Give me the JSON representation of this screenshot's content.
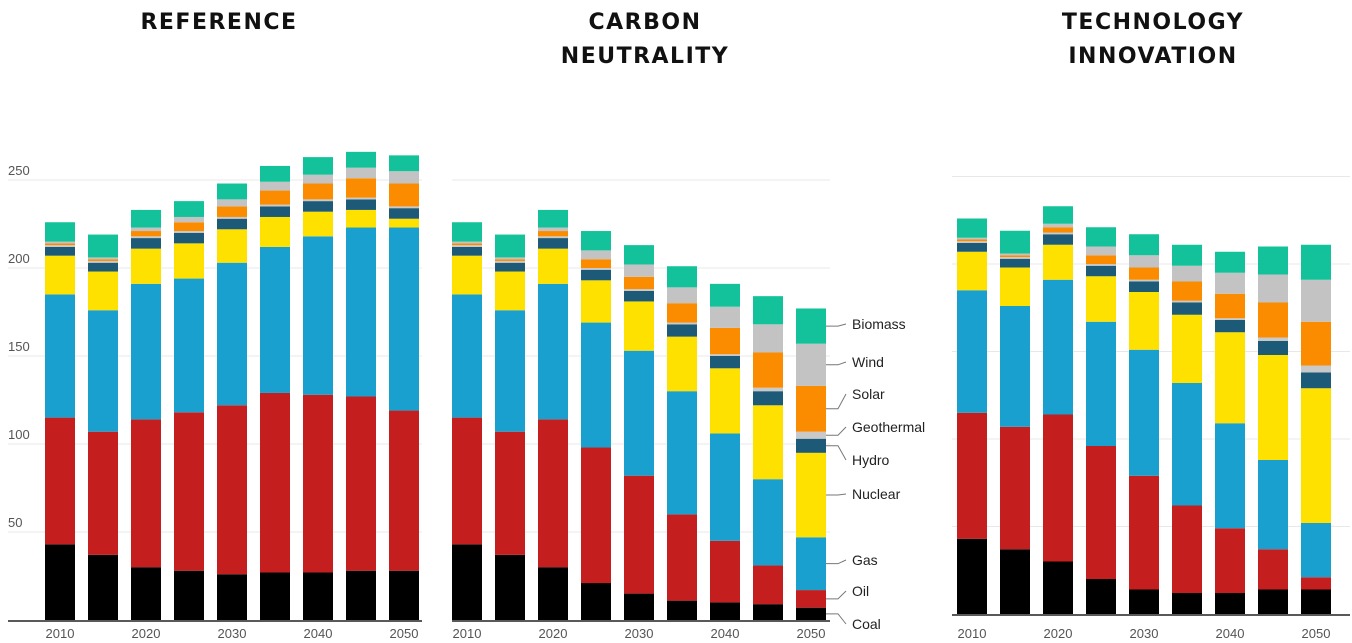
{
  "colors": {
    "Coal": "#000000",
    "Oil": "#c41e1e",
    "Gas": "#1aa0cf",
    "Nuclear": "#ffe100",
    "Hydro": "#1c5a78",
    "Geothermal": "#c9c9c9",
    "Solar": "#fb8c00",
    "Wind": "#c3c3c3",
    "Biomass": "#13c29a"
  },
  "chart_data": [
    {
      "type": "bar",
      "stacked": true,
      "title": "REFERENCE",
      "categories": [
        "2010",
        "2015",
        "2020",
        "2025",
        "2030",
        "2035",
        "2040",
        "2045",
        "2050"
      ],
      "x_tick_labels": [
        "2010",
        "2020",
        "2030",
        "2040",
        "2050"
      ],
      "y_tick_labels": [
        "50",
        "100",
        "150",
        "200",
        "250"
      ],
      "ylim": [
        0,
        260
      ],
      "grid": true,
      "series": [
        {
          "name": "Coal",
          "values": [
            43,
            37,
            30,
            28,
            26,
            27,
            27,
            28,
            28
          ]
        },
        {
          "name": "Oil",
          "values": [
            72,
            70,
            84,
            90,
            96,
            102,
            101,
            99,
            91
          ]
        },
        {
          "name": "Gas",
          "values": [
            70,
            69,
            77,
            76,
            81,
            83,
            90,
            96,
            104
          ]
        },
        {
          "name": "Nuclear",
          "values": [
            22,
            22,
            20,
            20,
            19,
            17,
            14,
            10,
            5
          ]
        },
        {
          "name": "Hydro",
          "values": [
            5,
            5,
            6,
            6,
            6,
            6,
            6,
            6,
            6
          ]
        },
        {
          "name": "Geothermal",
          "values": [
            1,
            1,
            1,
            1,
            1,
            1,
            1,
            1,
            1
          ]
        },
        {
          "name": "Solar",
          "values": [
            1,
            1,
            3,
            5,
            6,
            8,
            9,
            11,
            13
          ]
        },
        {
          "name": "Wind",
          "values": [
            1,
            1,
            2,
            3,
            4,
            5,
            5,
            6,
            7
          ]
        },
        {
          "name": "Biomass",
          "values": [
            11,
            13,
            10,
            9,
            9,
            9,
            10,
            9,
            9
          ]
        }
      ]
    },
    {
      "type": "bar",
      "stacked": true,
      "title": "CARBON\nNEUTRALITY",
      "categories": [
        "2010",
        "2015",
        "2020",
        "2025",
        "2030",
        "2035",
        "2040",
        "2045",
        "2050"
      ],
      "x_tick_labels": [
        "2010",
        "2020",
        "2030",
        "2040",
        "2050"
      ],
      "ylim": [
        0,
        260
      ],
      "grid": true,
      "legend": [
        "Biomass",
        "Wind",
        "Solar",
        "Geothermal",
        "Hydro",
        "Nuclear",
        "Gas",
        "Oil",
        "Coal"
      ],
      "legend_position": "right",
      "series": [
        {
          "name": "Coal",
          "values": [
            43,
            37,
            30,
            21,
            15,
            11,
            10,
            9,
            7
          ]
        },
        {
          "name": "Oil",
          "values": [
            72,
            70,
            84,
            77,
            67,
            49,
            35,
            22,
            10
          ]
        },
        {
          "name": "Gas",
          "values": [
            70,
            69,
            77,
            71,
            71,
            70,
            61,
            49,
            30
          ]
        },
        {
          "name": "Nuclear",
          "values": [
            22,
            22,
            20,
            24,
            28,
            31,
            37,
            42,
            48
          ]
        },
        {
          "name": "Hydro",
          "values": [
            5,
            5,
            6,
            6,
            6,
            7,
            7,
            8,
            8
          ]
        },
        {
          "name": "Geothermal",
          "values": [
            1,
            1,
            1,
            1,
            1,
            1,
            1,
            2,
            4
          ]
        },
        {
          "name": "Solar",
          "values": [
            1,
            1,
            3,
            5,
            7,
            11,
            15,
            20,
            26
          ]
        },
        {
          "name": "Wind",
          "values": [
            1,
            1,
            2,
            5,
            7,
            9,
            12,
            16,
            24
          ]
        },
        {
          "name": "Biomass",
          "values": [
            11,
            13,
            10,
            11,
            11,
            12,
            13,
            16,
            20
          ]
        }
      ]
    },
    {
      "type": "bar",
      "stacked": true,
      "title": "TECHNOLOGY\nINNOVATION",
      "categories": [
        "2010",
        "2015",
        "2020",
        "2025",
        "2030",
        "2035",
        "2040",
        "2045",
        "2050"
      ],
      "x_tick_labels": [
        "2010",
        "2020",
        "2030",
        "2040",
        "2050"
      ],
      "ylim": [
        0,
        260
      ],
      "grid": true,
      "series": [
        {
          "name": "Coal",
          "values": [
            43,
            37,
            30,
            20,
            14,
            12,
            12,
            14,
            14
          ]
        },
        {
          "name": "Oil",
          "values": [
            72,
            70,
            84,
            76,
            65,
            50,
            37,
            23,
            7
          ]
        },
        {
          "name": "Gas",
          "values": [
            70,
            69,
            77,
            71,
            72,
            70,
            60,
            51,
            31
          ]
        },
        {
          "name": "Nuclear",
          "values": [
            22,
            22,
            20,
            26,
            33,
            39,
            52,
            60,
            77
          ]
        },
        {
          "name": "Hydro",
          "values": [
            5,
            5,
            6,
            6,
            6,
            7,
            7,
            8,
            9
          ]
        },
        {
          "name": "Geothermal",
          "values": [
            1,
            1,
            1,
            1,
            1,
            1,
            1,
            2,
            4
          ]
        },
        {
          "name": "Solar",
          "values": [
            1,
            1,
            3,
            5,
            7,
            11,
            14,
            20,
            25
          ]
        },
        {
          "name": "Wind",
          "values": [
            1,
            1,
            2,
            5,
            7,
            9,
            12,
            16,
            24
          ]
        },
        {
          "name": "Biomass",
          "values": [
            11,
            13,
            10,
            11,
            12,
            12,
            12,
            16,
            20
          ]
        }
      ]
    }
  ]
}
